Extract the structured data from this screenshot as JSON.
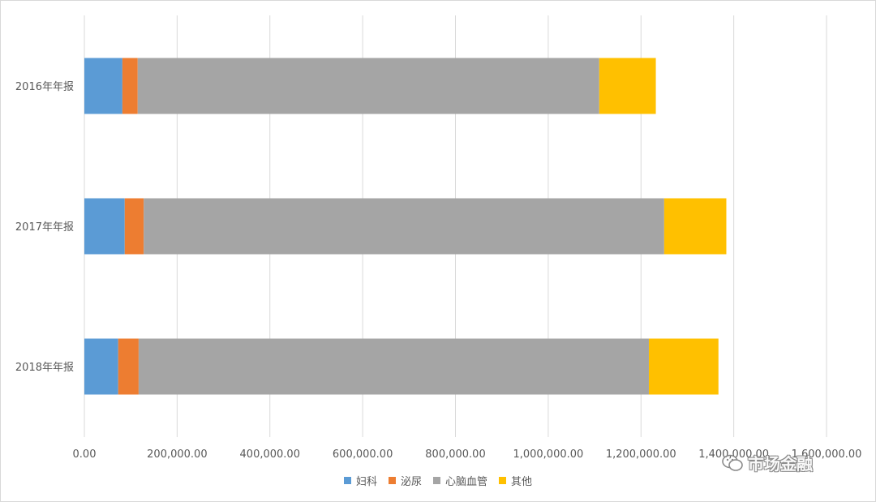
{
  "chart_data": {
    "type": "bar",
    "orientation": "horizontal",
    "stacked": true,
    "title": "",
    "xlabel": "",
    "ylabel": "",
    "categories": [
      "2016年年报",
      "2017年年报",
      "2018年年报"
    ],
    "series": [
      {
        "name": "妇科",
        "color": "#5b9bd5",
        "values": [
          82000,
          87000,
          73000
        ]
      },
      {
        "name": "泌尿",
        "color": "#ed7d31",
        "values": [
          33000,
          41000,
          44000
        ]
      },
      {
        "name": "心脑血管",
        "color": "#a5a5a5",
        "values": [
          995000,
          1122000,
          1100000
        ]
      },
      {
        "name": "其他",
        "color": "#ffc000",
        "values": [
          122000,
          134000,
          150000
        ]
      }
    ],
    "xlim": [
      0,
      1600000
    ],
    "xticks": [
      0,
      200000,
      400000,
      600000,
      800000,
      1000000,
      1200000,
      1400000,
      1600000
    ],
    "xtick_labels": [
      "0.00",
      "200,000.00",
      "400,000.00",
      "600,000.00",
      "800,000.00",
      "1,000,000.00",
      "1,200,000.00",
      "1,400,000.00",
      "1,600,000.00"
    ],
    "grid": "vertical",
    "legend_position": "bottom"
  },
  "watermark": {
    "text": "市场金融",
    "icon": "wechat-icon"
  }
}
